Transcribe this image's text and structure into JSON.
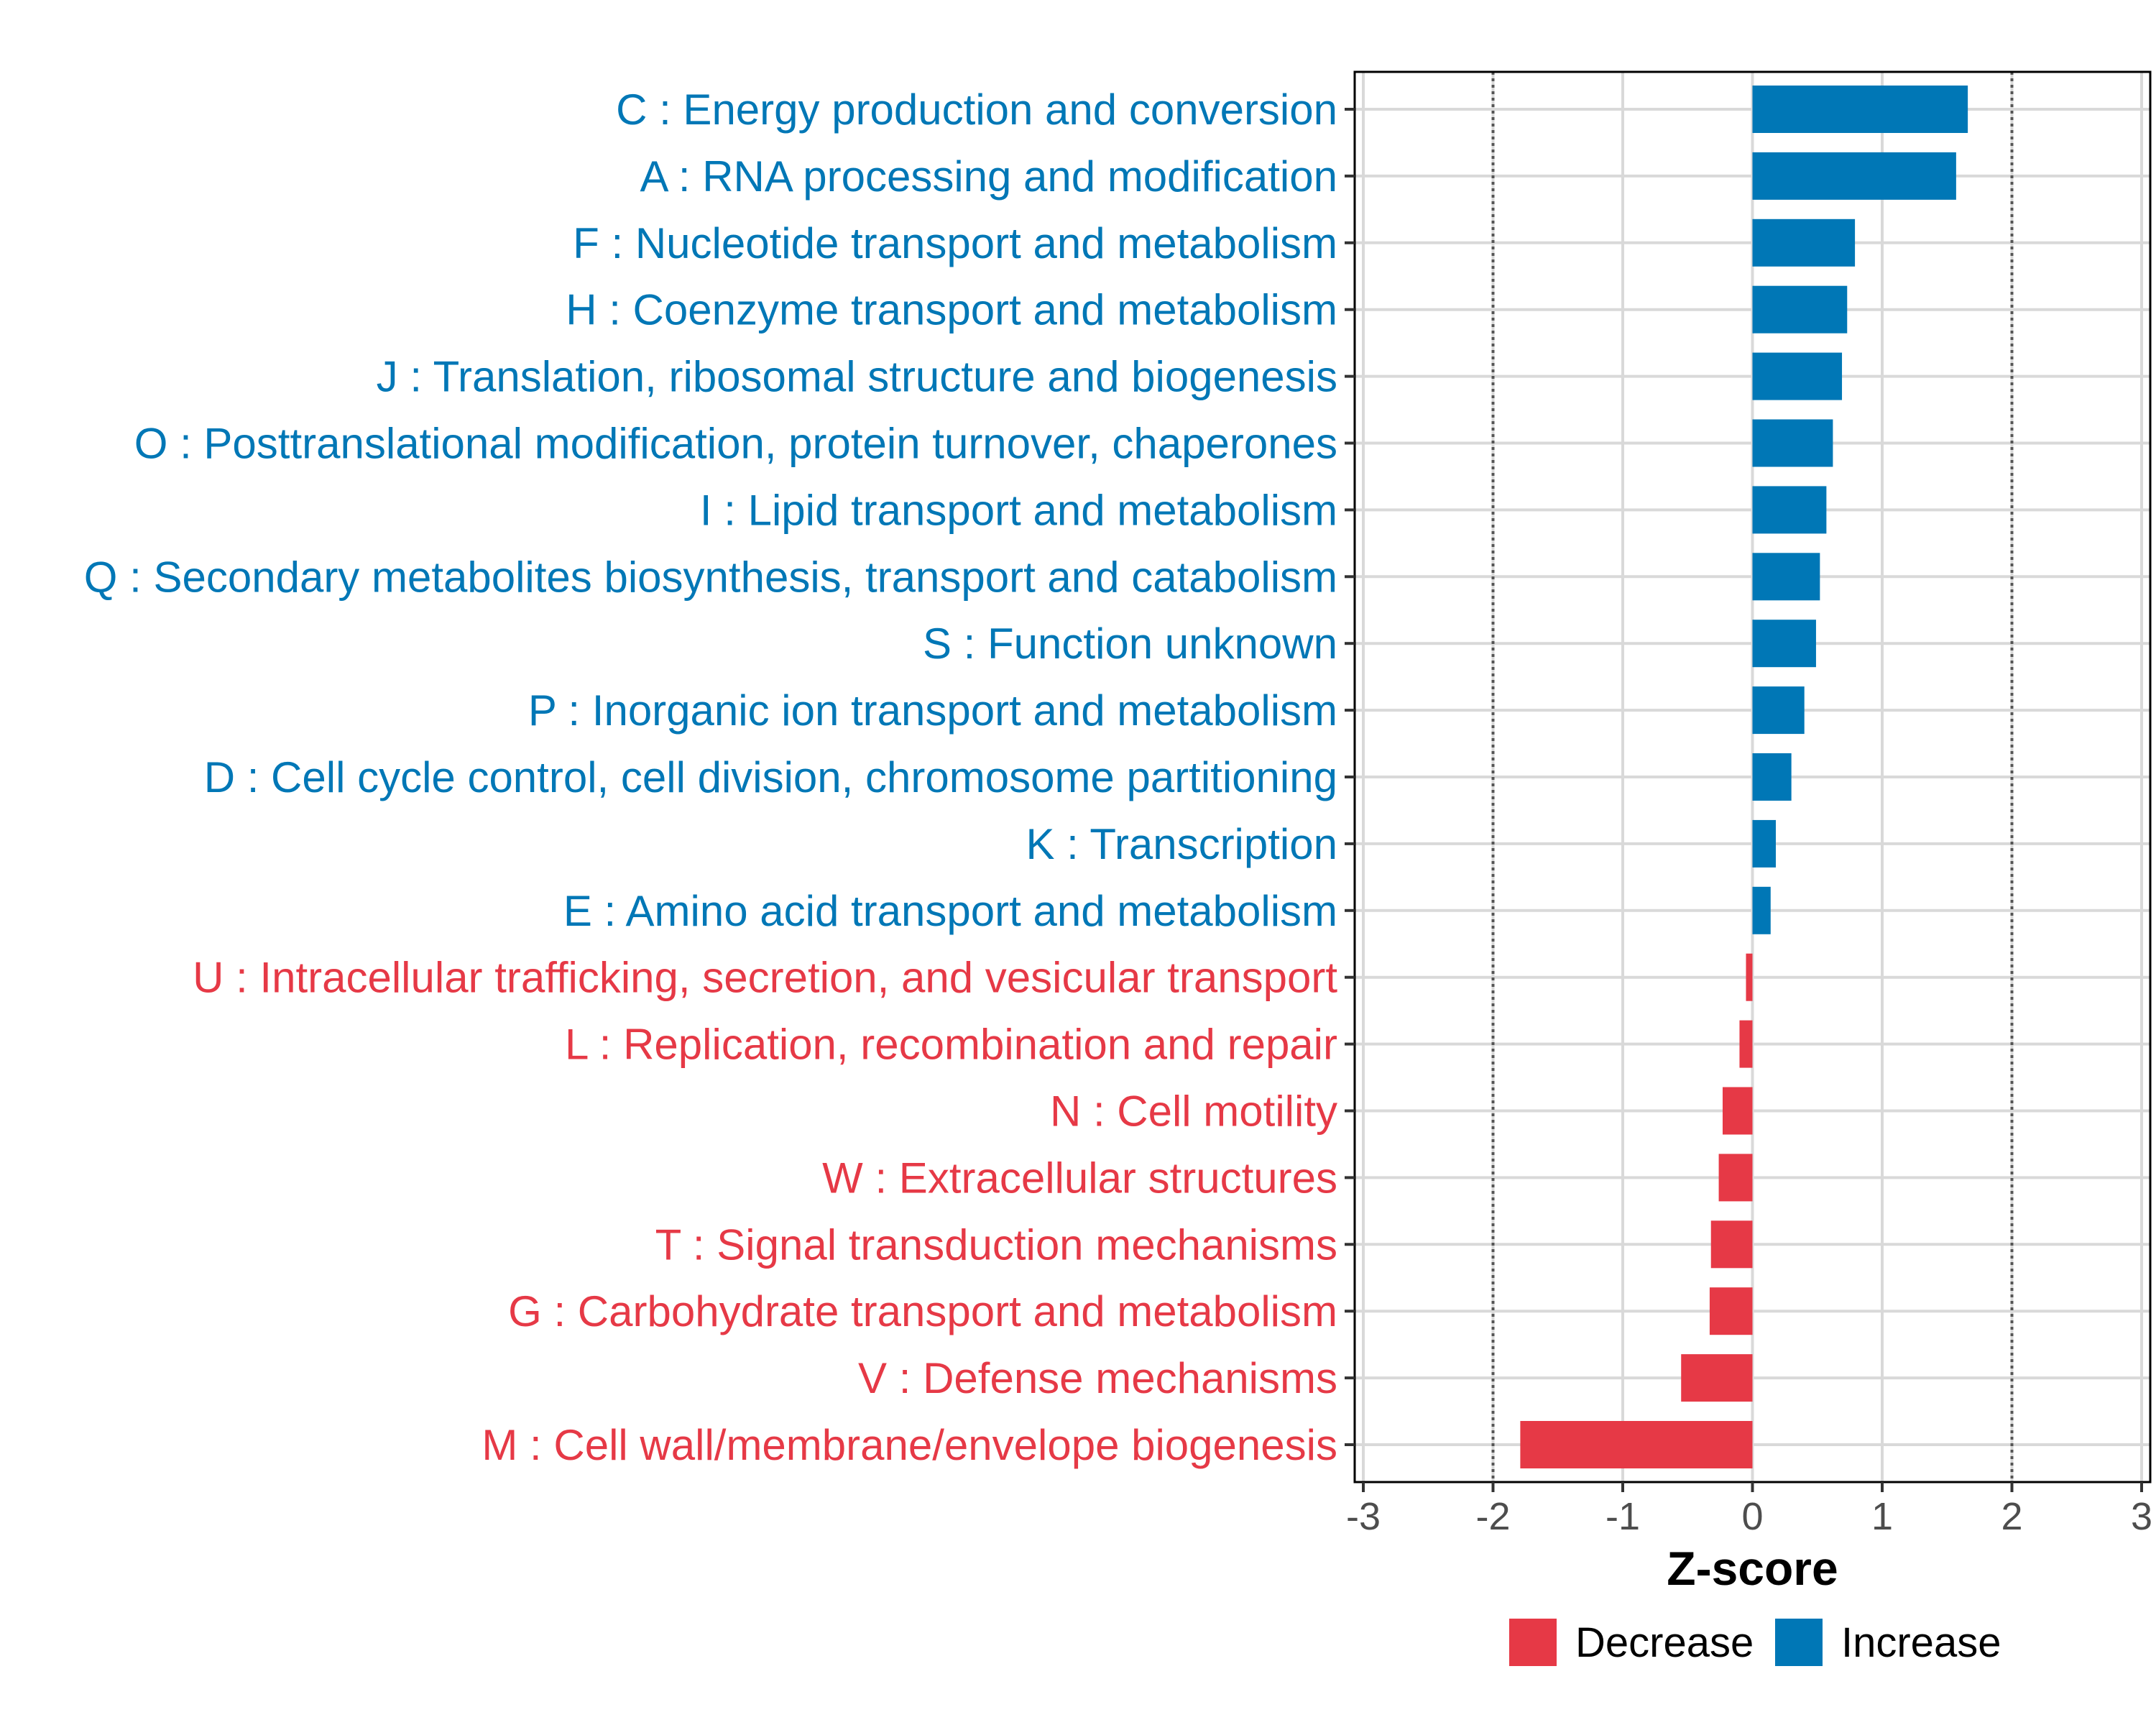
{
  "chart_data": {
    "type": "bar",
    "orientation": "horizontal",
    "xlabel": "Z-score",
    "xlim": [
      -3,
      3
    ],
    "xticks": [
      "-3",
      "-2",
      "-1",
      "0",
      "1",
      "2",
      "3"
    ],
    "reference_lines": [
      -2,
      2
    ],
    "grid": true,
    "legend_position": "bottom",
    "legend": [
      {
        "key": "Decrease",
        "label": "Decrease",
        "color": "#e63946"
      },
      {
        "key": "Increase",
        "label": "Increase",
        "color": "#0077b6"
      }
    ],
    "categories": [
      "C : Energy production and conversion",
      "A : RNA processing and modification",
      "F : Nucleotide transport and metabolism",
      "H : Coenzyme transport and metabolism",
      "J : Translation, ribosomal structure and biogenesis",
      "O : Posttranslational modification, protein turnover, chaperones",
      "I : Lipid transport and metabolism",
      "Q : Secondary metabolites biosynthesis, transport and catabolism",
      "S : Function unknown",
      "P : Inorganic ion transport and metabolism",
      "D : Cell cycle control, cell division, chromosome partitioning",
      "K : Transcription",
      "E : Amino acid transport and metabolism",
      "U : Intracellular trafficking, secretion, and vesicular transport",
      "L : Replication, recombination and repair",
      "N : Cell motility",
      "W : Extracellular structures",
      "T : Signal transduction mechanisms",
      "G : Carbohydrate transport and metabolism",
      "V : Defense mechanisms",
      "M : Cell wall/membrane/envelope biogenesis"
    ],
    "values": [
      1.66,
      1.57,
      0.79,
      0.73,
      0.69,
      0.62,
      0.57,
      0.52,
      0.49,
      0.4,
      0.3,
      0.18,
      0.14,
      -0.05,
      -0.1,
      -0.23,
      -0.26,
      -0.32,
      -0.33,
      -0.55,
      -1.79
    ]
  }
}
